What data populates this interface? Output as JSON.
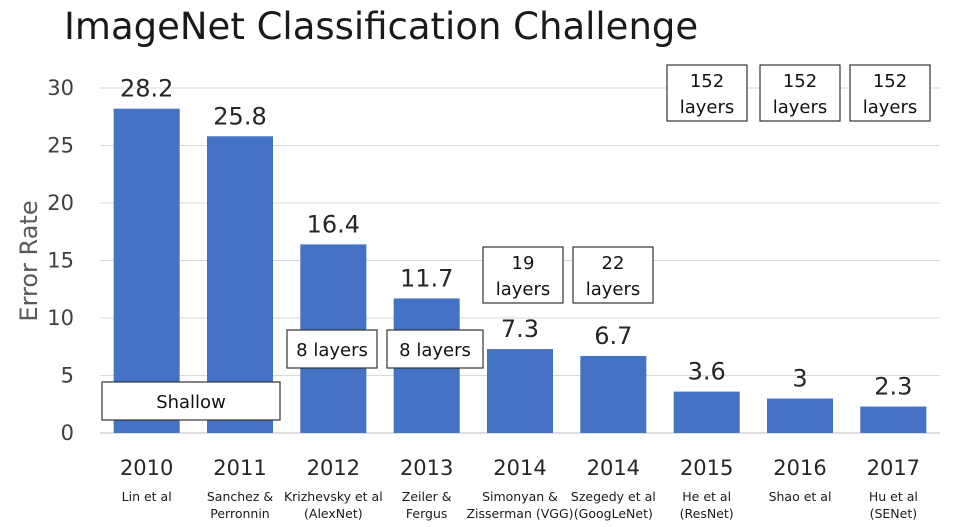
{
  "chart_data": {
    "type": "bar",
    "title": "ImageNet Classification Challenge",
    "ylabel": "Error Rate",
    "ylim": [
      0,
      30
    ],
    "yticks": [
      0,
      5,
      10,
      15,
      20,
      25,
      30
    ],
    "grid": true,
    "bar_color": "#4472c4",
    "categories": [
      {
        "year": "2010",
        "sub": [
          "Lin et al"
        ]
      },
      {
        "year": "2011",
        "sub": [
          "Sanchez &",
          "Perronnin"
        ]
      },
      {
        "year": "2012",
        "sub": [
          "Krizhevsky et al",
          "(AlexNet)"
        ]
      },
      {
        "year": "2013",
        "sub": [
          "Zeiler &",
          "Fergus"
        ]
      },
      {
        "year": "2014",
        "sub": [
          "Simonyan &",
          "Zisserman (VGG)"
        ]
      },
      {
        "year": "2014",
        "sub": [
          "Szegedy et al",
          "(GoogLeNet)"
        ]
      },
      {
        "year": "2015",
        "sub": [
          "He et al",
          "(ResNet)"
        ]
      },
      {
        "year": "2016",
        "sub": [
          "Shao et al"
        ]
      },
      {
        "year": "2017",
        "sub": [
          "Hu et al",
          "(SENet)"
        ]
      }
    ],
    "values": [
      28.2,
      25.8,
      16.4,
      11.7,
      7.3,
      6.7,
      3.6,
      3,
      2.3
    ],
    "value_labels": [
      "28.2",
      "25.8",
      "16.4",
      "11.7",
      "7.3",
      "6.7",
      "3.6",
      "3",
      "2.3"
    ],
    "annotations": [
      {
        "lines": [
          "Shallow"
        ]
      },
      {
        "lines": [
          "8 layers"
        ]
      },
      {
        "lines": [
          "8 layers"
        ]
      },
      {
        "lines": [
          "19",
          "layers"
        ]
      },
      {
        "lines": [
          "22",
          "layers"
        ]
      },
      {
        "lines": [
          "152",
          "layers"
        ]
      },
      {
        "lines": [
          "152",
          "layers"
        ]
      },
      {
        "lines": [
          "152",
          "layers"
        ]
      }
    ]
  }
}
